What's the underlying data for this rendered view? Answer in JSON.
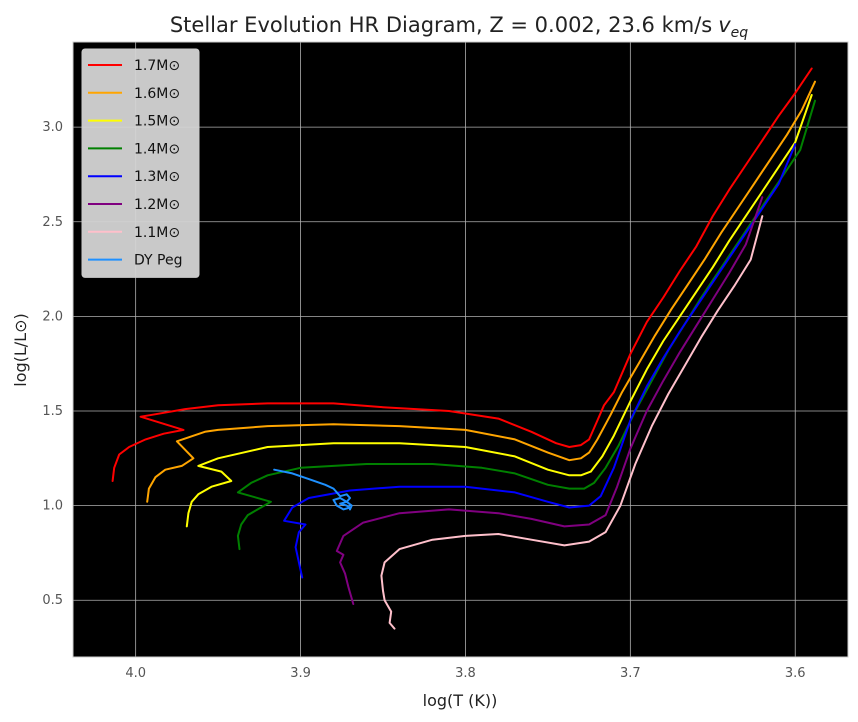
{
  "chart_data": {
    "type": "line",
    "title": "Stellar Evolution HR Diagram, Z = 0.002, 23.6 km/s",
    "title_suffix": "v",
    "title_suffix_sub": "eq",
    "xlabel": "log(T (K))",
    "ylabel": "log(L/L⊙)",
    "xlim": [
      4.038,
      3.568
    ],
    "ylim": [
      0.2,
      3.45
    ],
    "x_inverted": true,
    "background": "#000000",
    "grid": true,
    "legend_position": "top-left",
    "x_ticks": [
      {
        "value": 4.0,
        "label": "4.0"
      },
      {
        "value": 3.9,
        "label": "3.9"
      },
      {
        "value": 3.8,
        "label": "3.8"
      },
      {
        "value": 3.7,
        "label": "3.7"
      },
      {
        "value": 3.6,
        "label": "3.6"
      }
    ],
    "y_ticks": [
      {
        "value": 0.5,
        "label": "0.5"
      },
      {
        "value": 1.0,
        "label": "1.0"
      },
      {
        "value": 1.5,
        "label": "1.5"
      },
      {
        "value": 2.0,
        "label": "2.0"
      },
      {
        "value": 2.5,
        "label": "2.5"
      },
      {
        "value": 3.0,
        "label": "3.0"
      }
    ],
    "series": [
      {
        "name": "1.7M⊙",
        "color": "#ff0000",
        "x": [
          4.014,
          4.013,
          4.01,
          4.004,
          3.994,
          3.983,
          3.971,
          3.997,
          3.99,
          3.97,
          3.95,
          3.92,
          3.88,
          3.85,
          3.81,
          3.78,
          3.76,
          3.745,
          3.737,
          3.73,
          3.725,
          3.72,
          3.716,
          3.71,
          3.7,
          3.69,
          3.68,
          3.67,
          3.66,
          3.65,
          3.64,
          3.63,
          3.62,
          3.61,
          3.6,
          3.59
        ],
        "y": [
          1.13,
          1.2,
          1.27,
          1.31,
          1.35,
          1.38,
          1.4,
          1.47,
          1.48,
          1.51,
          1.53,
          1.54,
          1.54,
          1.52,
          1.5,
          1.46,
          1.39,
          1.33,
          1.31,
          1.32,
          1.35,
          1.45,
          1.53,
          1.6,
          1.8,
          1.97,
          2.1,
          2.24,
          2.37,
          2.53,
          2.67,
          2.8,
          2.93,
          3.06,
          3.18,
          3.31
        ]
      },
      {
        "name": "1.6M⊙",
        "color": "#ffa500",
        "x": [
          3.993,
          3.992,
          3.988,
          3.982,
          3.972,
          3.965,
          3.975,
          3.958,
          3.95,
          3.92,
          3.88,
          3.84,
          3.8,
          3.77,
          3.75,
          3.737,
          3.73,
          3.725,
          3.72,
          3.712,
          3.705,
          3.695,
          3.685,
          3.675,
          3.665,
          3.655,
          3.645,
          3.635,
          3.625,
          3.615,
          3.605,
          3.596,
          3.588
        ],
        "y": [
          1.02,
          1.09,
          1.15,
          1.19,
          1.21,
          1.25,
          1.34,
          1.39,
          1.4,
          1.42,
          1.43,
          1.42,
          1.4,
          1.35,
          1.28,
          1.24,
          1.25,
          1.28,
          1.35,
          1.48,
          1.6,
          1.75,
          1.9,
          2.04,
          2.17,
          2.3,
          2.44,
          2.57,
          2.7,
          2.83,
          2.96,
          3.09,
          3.24
        ]
      },
      {
        "name": "1.5M⊙",
        "color": "#ffff00",
        "x": [
          3.969,
          3.968,
          3.966,
          3.962,
          3.954,
          3.942,
          3.948,
          3.962,
          3.95,
          3.92,
          3.88,
          3.84,
          3.8,
          3.77,
          3.75,
          3.737,
          3.73,
          3.724,
          3.717,
          3.71,
          3.7,
          3.69,
          3.68,
          3.67,
          3.66,
          3.65,
          3.64,
          3.63,
          3.62,
          3.61,
          3.6,
          3.59
        ],
        "y": [
          0.89,
          0.96,
          1.02,
          1.06,
          1.1,
          1.13,
          1.18,
          1.21,
          1.25,
          1.31,
          1.33,
          1.33,
          1.31,
          1.26,
          1.19,
          1.16,
          1.16,
          1.18,
          1.26,
          1.37,
          1.55,
          1.72,
          1.87,
          2.0,
          2.13,
          2.26,
          2.4,
          2.53,
          2.66,
          2.79,
          2.92,
          3.17
        ]
      },
      {
        "name": "1.4M⊙",
        "color": "#008000",
        "x": [
          3.937,
          3.938,
          3.936,
          3.932,
          3.926,
          3.918,
          3.938,
          3.93,
          3.92,
          3.9,
          3.86,
          3.82,
          3.79,
          3.77,
          3.75,
          3.737,
          3.728,
          3.722,
          3.715,
          3.707,
          3.697,
          3.687,
          3.677,
          3.667,
          3.657,
          3.647,
          3.637,
          3.627,
          3.617,
          3.607,
          3.597,
          3.588
        ],
        "y": [
          0.77,
          0.84,
          0.9,
          0.95,
          0.98,
          1.02,
          1.07,
          1.12,
          1.16,
          1.2,
          1.22,
          1.22,
          1.2,
          1.17,
          1.11,
          1.09,
          1.09,
          1.12,
          1.2,
          1.32,
          1.5,
          1.66,
          1.82,
          1.96,
          2.1,
          2.23,
          2.36,
          2.49,
          2.62,
          2.75,
          2.88,
          3.14
        ]
      },
      {
        "name": "1.3M⊙",
        "color": "#0000ff",
        "x": [
          3.899,
          3.901,
          3.903,
          3.901,
          3.897,
          3.91,
          3.905,
          3.895,
          3.87,
          3.84,
          3.8,
          3.77,
          3.75,
          3.737,
          3.725,
          3.718,
          3.71,
          3.7,
          3.69,
          3.68,
          3.67,
          3.66,
          3.65,
          3.64,
          3.63,
          3.62,
          3.61,
          3.6
        ],
        "y": [
          0.62,
          0.7,
          0.78,
          0.86,
          0.9,
          0.92,
          0.99,
          1.04,
          1.08,
          1.1,
          1.1,
          1.07,
          1.02,
          0.99,
          1.0,
          1.05,
          1.2,
          1.45,
          1.63,
          1.78,
          1.92,
          2.05,
          2.18,
          2.31,
          2.44,
          2.57,
          2.7,
          2.91
        ]
      },
      {
        "name": "1.2M⊙",
        "color": "#800080",
        "x": [
          3.868,
          3.871,
          3.873,
          3.876,
          3.874,
          3.878,
          3.874,
          3.862,
          3.84,
          3.81,
          3.78,
          3.76,
          3.74,
          3.725,
          3.715,
          3.708,
          3.7,
          3.69,
          3.68,
          3.67,
          3.66,
          3.65,
          3.64,
          3.63,
          3.62
        ],
        "y": [
          0.48,
          0.57,
          0.64,
          0.7,
          0.74,
          0.76,
          0.84,
          0.91,
          0.96,
          0.98,
          0.96,
          0.93,
          0.89,
          0.9,
          0.95,
          1.1,
          1.3,
          1.5,
          1.66,
          1.81,
          1.95,
          2.09,
          2.23,
          2.38,
          2.63
        ]
      },
      {
        "name": "1.1M⊙",
        "color": "#ffc0cb",
        "x": [
          3.843,
          3.846,
          3.845,
          3.849,
          3.85,
          3.851,
          3.849,
          3.84,
          3.82,
          3.8,
          3.78,
          3.76,
          3.74,
          3.725,
          3.715,
          3.706,
          3.697,
          3.687,
          3.677,
          3.667,
          3.657,
          3.647,
          3.637,
          3.627,
          3.62
        ],
        "y": [
          0.35,
          0.38,
          0.44,
          0.5,
          0.55,
          0.63,
          0.7,
          0.77,
          0.82,
          0.84,
          0.85,
          0.82,
          0.79,
          0.81,
          0.86,
          1.0,
          1.22,
          1.42,
          1.59,
          1.74,
          1.89,
          2.03,
          2.16,
          2.3,
          2.53
        ]
      },
      {
        "name": "DY Peg",
        "color": "#1e90ff",
        "x": [
          3.916,
          3.905,
          3.895,
          3.885,
          3.88,
          3.878,
          3.876,
          3.872,
          3.87,
          3.872,
          3.876,
          3.872,
          3.87,
          3.874,
          3.878,
          3.88,
          3.876,
          3.872,
          3.869,
          3.87
        ],
        "y": [
          1.19,
          1.17,
          1.14,
          1.11,
          1.09,
          1.07,
          1.05,
          1.06,
          1.04,
          1.02,
          1.01,
          1.0,
          0.99,
          0.98,
          1.0,
          1.03,
          1.04,
          1.02,
          1.0,
          0.98
        ]
      }
    ]
  }
}
